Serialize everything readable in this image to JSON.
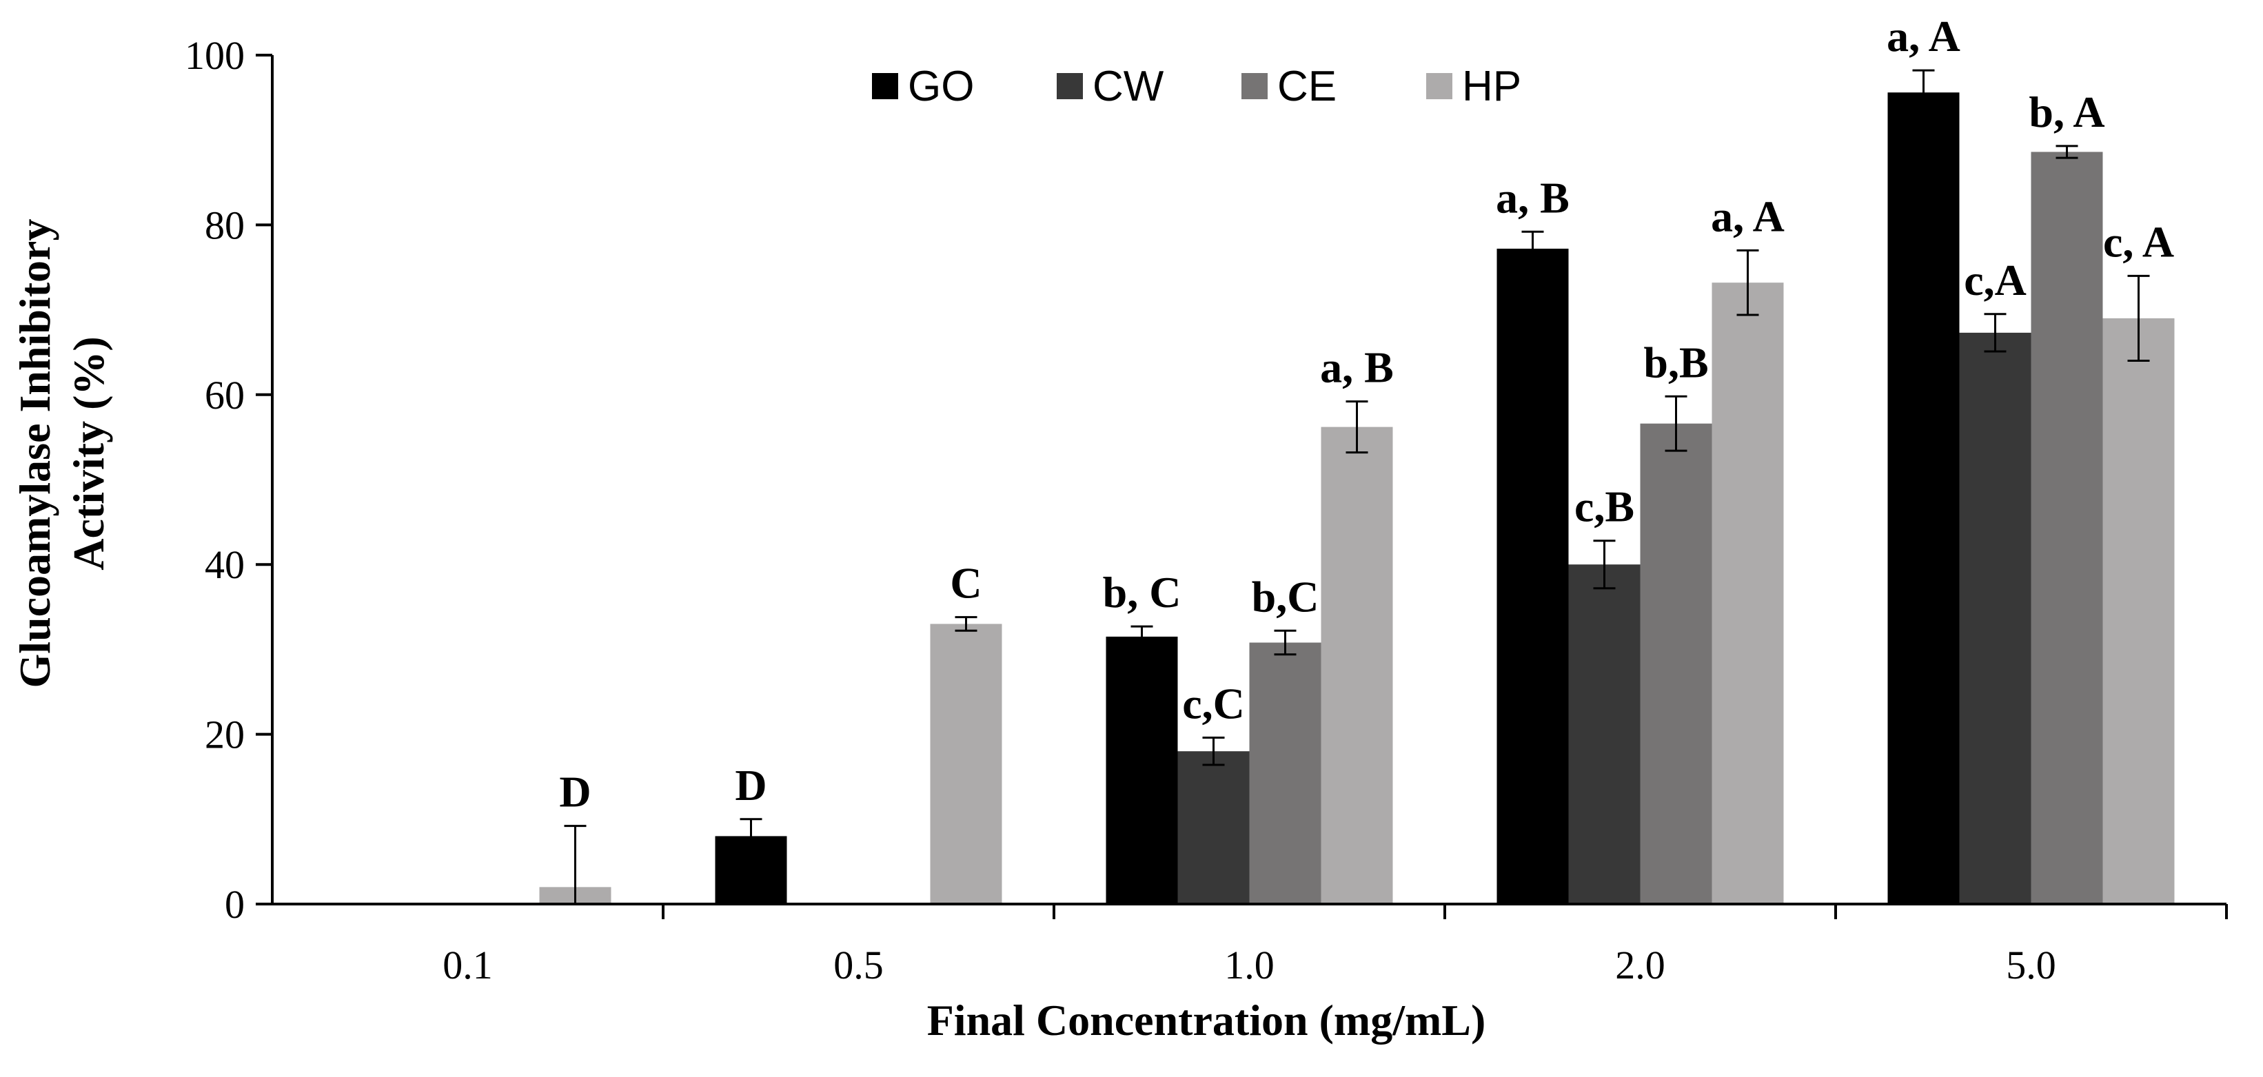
{
  "chart_data": {
    "type": "bar",
    "title": "",
    "xlabel": "Final Concentration (mg/mL)",
    "ylabel": "Glucoamylase Inhibitory Activity (%)",
    "ylabel_lines": [
      "Glucoamylase Inhibitory",
      "Activity (%)"
    ],
    "ylim": [
      0,
      100
    ],
    "yticks": [
      0,
      20,
      40,
      60,
      80,
      100
    ],
    "categories": [
      "0.1",
      "0.5",
      "1.0",
      "2.0",
      "5.0"
    ],
    "legend_position": "top-center",
    "series": [
      {
        "name": "GO",
        "color": "#000000",
        "values": [
          null,
          8,
          31.5,
          77.2,
          95.6
        ],
        "errors": [
          null,
          2.0,
          1.2,
          2.0,
          2.6
        ],
        "labels": [
          "",
          "D",
          "b, C",
          "a, B",
          "a, A"
        ]
      },
      {
        "name": "CW",
        "color": "#383838",
        "values": [
          null,
          null,
          18,
          40,
          67.3
        ],
        "errors": [
          null,
          null,
          1.6,
          2.8,
          2.2
        ],
        "labels": [
          "",
          "",
          "c,C",
          "c,B",
          "c,A"
        ]
      },
      {
        "name": "CE",
        "color": "#767474",
        "values": [
          null,
          null,
          30.8,
          56.6,
          88.6
        ],
        "errors": [
          null,
          null,
          1.4,
          3.2,
          0.7
        ],
        "labels": [
          "",
          "",
          "b,C",
          "b,B",
          "b, A"
        ]
      },
      {
        "name": "HP",
        "color": "#adabab",
        "values": [
          2.0,
          33,
          56.2,
          73.2,
          69
        ],
        "errors": [
          7.2,
          0.8,
          3.0,
          3.8,
          5.0
        ],
        "labels": [
          "D",
          "C",
          "a, B",
          "a, A",
          "c, A"
        ]
      }
    ]
  }
}
